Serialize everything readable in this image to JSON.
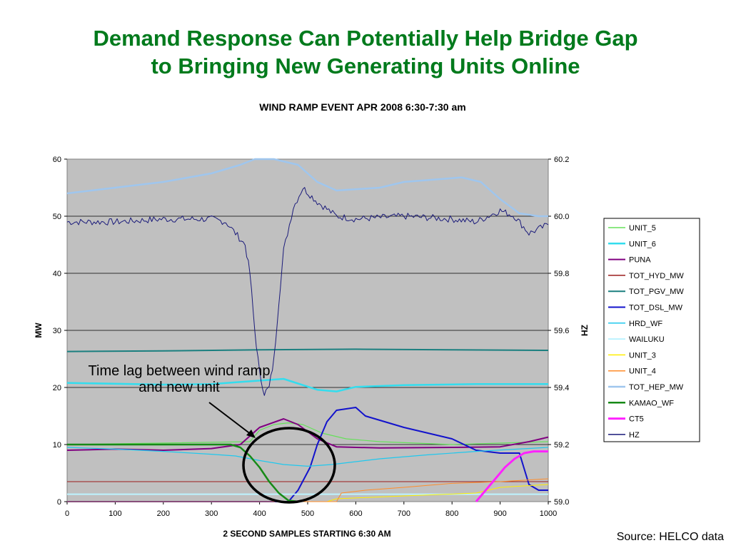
{
  "slide": {
    "title_line1": "Demand Response Can Potentially Help Bridge Gap",
    "title_line2": "to Bringing New Generating Units Online",
    "callout_line1": "Time lag between wind ramp",
    "callout_line2": "and new unit",
    "source": "Source: HELCO data"
  },
  "chart_data": {
    "type": "line",
    "title": "WIND RAMP EVENT APR 2008 6:30-7:30 am",
    "xlabel": "2 SECOND SAMPLES STARTING 6:30 AM",
    "ylabel": "MW",
    "y2label": "HZ",
    "xlim": [
      0,
      1000
    ],
    "ylim": [
      0,
      60
    ],
    "y2lim": [
      59.0,
      60.2
    ],
    "x_ticks": [
      "0",
      "100",
      "200",
      "300",
      "400",
      "500",
      "600",
      "700",
      "800",
      "900",
      "1000"
    ],
    "y_ticks": [
      "0",
      "10",
      "20",
      "30",
      "40",
      "50",
      "60"
    ],
    "y2_ticks": [
      "59.0",
      "59.2",
      "59.4",
      "59.6",
      "59.8",
      "60.0",
      "60.2"
    ],
    "grid": true,
    "legend_position": "right",
    "series": [
      {
        "name": "UNIT_5",
        "color": "#66e05a",
        "width": 1.2,
        "axis": "left",
        "points": [
          [
            0,
            10
          ],
          [
            380,
            10.5
          ],
          [
            400,
            12.5
          ],
          [
            430,
            13.5
          ],
          [
            460,
            13.8
          ],
          [
            490,
            13.5
          ],
          [
            530,
            12
          ],
          [
            580,
            11
          ],
          [
            650,
            10.5
          ],
          [
            800,
            10
          ],
          [
            1000,
            10.5
          ]
        ]
      },
      {
        "name": "UNIT_6",
        "color": "#33ddee",
        "width": 2.5,
        "axis": "left",
        "points": [
          [
            0,
            20.8
          ],
          [
            200,
            20.5
          ],
          [
            300,
            20.6
          ],
          [
            400,
            21.2
          ],
          [
            450,
            21.5
          ],
          [
            520,
            19.6
          ],
          [
            560,
            19.3
          ],
          [
            600,
            20.1
          ],
          [
            700,
            20.4
          ],
          [
            850,
            20.6
          ],
          [
            1000,
            20.6
          ]
        ]
      },
      {
        "name": "PUNA",
        "color": "#800080",
        "width": 2,
        "axis": "left",
        "points": [
          [
            0,
            9
          ],
          [
            100,
            9.2
          ],
          [
            200,
            9
          ],
          [
            300,
            9.3
          ],
          [
            360,
            10
          ],
          [
            400,
            13
          ],
          [
            450,
            14.5
          ],
          [
            480,
            13.5
          ],
          [
            520,
            11
          ],
          [
            560,
            9.6
          ],
          [
            650,
            9.4
          ],
          [
            800,
            9.5
          ],
          [
            900,
            9.6
          ],
          [
            960,
            10.5
          ],
          [
            1000,
            11.3
          ]
        ]
      },
      {
        "name": "TOT_HYD_MW",
        "color": "#9b1b1b",
        "width": 1,
        "axis": "left",
        "points": [
          [
            0,
            3.5
          ],
          [
            1000,
            3.5
          ]
        ]
      },
      {
        "name": "TOT_PGV_MW",
        "color": "#1a7f7f",
        "width": 2,
        "axis": "left",
        "points": [
          [
            0,
            26.3
          ],
          [
            200,
            26.4
          ],
          [
            400,
            26.6
          ],
          [
            600,
            26.7
          ],
          [
            800,
            26.6
          ],
          [
            1000,
            26.5
          ]
        ]
      },
      {
        "name": "TOT_DSL_MW",
        "color": "#1212cc",
        "width": 2,
        "axis": "left",
        "points": [
          [
            0,
            0
          ],
          [
            460,
            0
          ],
          [
            480,
            2
          ],
          [
            505,
            6
          ],
          [
            520,
            10
          ],
          [
            540,
            14
          ],
          [
            560,
            16
          ],
          [
            600,
            16.5
          ],
          [
            620,
            15
          ],
          [
            700,
            13
          ],
          [
            800,
            11
          ],
          [
            850,
            9
          ],
          [
            900,
            8.5
          ],
          [
            940,
            8.5
          ],
          [
            960,
            3
          ],
          [
            980,
            2
          ],
          [
            1000,
            2
          ]
        ]
      },
      {
        "name": "HRD_WF",
        "color": "#1fc8ee",
        "width": 1.2,
        "axis": "left",
        "points": [
          [
            0,
            9.5
          ],
          [
            100,
            9.2
          ],
          [
            200,
            8.8
          ],
          [
            300,
            8.3
          ],
          [
            350,
            8
          ],
          [
            400,
            7.2
          ],
          [
            450,
            6.5
          ],
          [
            500,
            6.2
          ],
          [
            550,
            6.5
          ],
          [
            650,
            7.5
          ],
          [
            750,
            8.2
          ],
          [
            850,
            8.8
          ],
          [
            1000,
            9.5
          ]
        ]
      },
      {
        "name": "WAILUKU",
        "color": "#bdf3ff",
        "width": 2,
        "axis": "left",
        "points": [
          [
            0,
            1.3
          ],
          [
            1000,
            1.3
          ]
        ]
      },
      {
        "name": "UNIT_3",
        "color": "#ffee00",
        "width": 1,
        "axis": "left",
        "points": [
          [
            0,
            0
          ],
          [
            540,
            0
          ],
          [
            560,
            0.5
          ],
          [
            700,
            1
          ],
          [
            850,
            1.5
          ],
          [
            900,
            2.5
          ],
          [
            1000,
            3
          ]
        ]
      },
      {
        "name": "UNIT_4",
        "color": "#ff8c2a",
        "width": 1,
        "axis": "left",
        "points": [
          [
            0,
            0
          ],
          [
            560,
            0
          ],
          [
            570,
            1.5
          ],
          [
            620,
            2
          ],
          [
            700,
            2.5
          ],
          [
            800,
            3.2
          ],
          [
            900,
            3.5
          ],
          [
            1000,
            4
          ]
        ]
      },
      {
        "name": "TOT_HEP_MW",
        "color": "#9fc6ee",
        "width": 2.5,
        "axis": "left",
        "points": [
          [
            0,
            54
          ],
          [
            100,
            55
          ],
          [
            200,
            56
          ],
          [
            300,
            57.5
          ],
          [
            360,
            59
          ],
          [
            390,
            60
          ],
          [
            430,
            60
          ],
          [
            480,
            59
          ],
          [
            520,
            56
          ],
          [
            560,
            54.5
          ],
          [
            650,
            55
          ],
          [
            700,
            56
          ],
          [
            820,
            56.8
          ],
          [
            860,
            56
          ],
          [
            900,
            53
          ],
          [
            940,
            50.5
          ],
          [
            980,
            50
          ],
          [
            1000,
            50
          ]
        ]
      },
      {
        "name": "KAMAO_WF",
        "color": "#178a17",
        "width": 2.5,
        "axis": "left",
        "points": [
          [
            0,
            10
          ],
          [
            340,
            10
          ],
          [
            360,
            9.5
          ],
          [
            380,
            8
          ],
          [
            400,
            6
          ],
          [
            420,
            3.5
          ],
          [
            440,
            1.5
          ],
          [
            460,
            0.2
          ],
          [
            480,
            0
          ]
        ]
      },
      {
        "name": "CT5",
        "color": "#ff22ff",
        "width": 3,
        "axis": "left",
        "points": [
          [
            850,
            0
          ],
          [
            870,
            2
          ],
          [
            890,
            4
          ],
          [
            910,
            6
          ],
          [
            930,
            7.5
          ],
          [
            950,
            8.5
          ],
          [
            970,
            8.8
          ],
          [
            1000,
            8.8
          ]
        ]
      },
      {
        "name": "HZ",
        "color": "#1a1a7a",
        "width": 1,
        "axis": "right",
        "jitter": 0.012,
        "points": [
          [
            0,
            59.98
          ],
          [
            100,
            59.98
          ],
          [
            200,
            59.99
          ],
          [
            300,
            59.99
          ],
          [
            330,
            59.98
          ],
          [
            350,
            59.94
          ],
          [
            370,
            59.9
          ],
          [
            380,
            59.8
          ],
          [
            390,
            59.6
          ],
          [
            400,
            59.45
          ],
          [
            410,
            59.38
          ],
          [
            420,
            59.4
          ],
          [
            430,
            59.5
          ],
          [
            440,
            59.7
          ],
          [
            450,
            59.88
          ],
          [
            470,
            60.03
          ],
          [
            490,
            60.1
          ],
          [
            520,
            60.05
          ],
          [
            560,
            60.0
          ],
          [
            600,
            59.99
          ],
          [
            700,
            60.0
          ],
          [
            800,
            59.99
          ],
          [
            850,
            59.98
          ],
          [
            900,
            60.02
          ],
          [
            930,
            60.0
          ],
          [
            960,
            59.94
          ],
          [
            1000,
            59.97
          ]
        ]
      }
    ]
  }
}
